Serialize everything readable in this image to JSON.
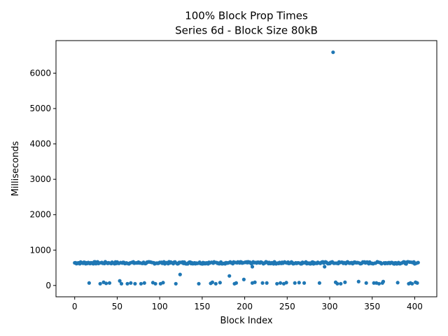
{
  "chart_data": {
    "type": "scatter",
    "title": "100% Block Prop Times",
    "subtitle": "Series 6d - Block Size 80kB",
    "xlabel": "Block Index",
    "ylabel": "Milliseconds",
    "xlim": [
      -22,
      426
    ],
    "ylim": [
      -320,
      6920
    ],
    "xticks": [
      0,
      50,
      100,
      150,
      200,
      250,
      300,
      350,
      400
    ],
    "yticks": [
      0,
      1000,
      2000,
      3000,
      4000,
      5000,
      6000
    ],
    "grid": false,
    "marker_color": "#1f77b4",
    "series": [
      {
        "baseline": {
          "x_range": [
            0,
            404
          ],
          "y": 640,
          "note_points_every_index": true
        },
        "outliers": [
          {
            "x": 304,
            "y": 6590
          },
          {
            "x": 124,
            "y": 310
          },
          {
            "x": 182,
            "y": 270
          },
          {
            "x": 199,
            "y": 170
          },
          {
            "x": 209,
            "y": 530
          },
          {
            "x": 294,
            "y": 530
          }
        ],
        "low_points": [
          {
            "x": 17,
            "y": 70
          },
          {
            "x": 30,
            "y": 50
          },
          {
            "x": 34,
            "y": 90
          },
          {
            "x": 37,
            "y": 60
          },
          {
            "x": 41,
            "y": 70
          },
          {
            "x": 53,
            "y": 130
          },
          {
            "x": 55,
            "y": 50
          },
          {
            "x": 62,
            "y": 50
          },
          {
            "x": 66,
            "y": 70
          },
          {
            "x": 71,
            "y": 50
          },
          {
            "x": 78,
            "y": 50
          },
          {
            "x": 82,
            "y": 70
          },
          {
            "x": 92,
            "y": 80
          },
          {
            "x": 95,
            "y": 50
          },
          {
            "x": 101,
            "y": 50
          },
          {
            "x": 104,
            "y": 80
          },
          {
            "x": 119,
            "y": 50
          },
          {
            "x": 146,
            "y": 50
          },
          {
            "x": 160,
            "y": 60
          },
          {
            "x": 162,
            "y": 90
          },
          {
            "x": 166,
            "y": 50
          },
          {
            "x": 171,
            "y": 80
          },
          {
            "x": 188,
            "y": 50
          },
          {
            "x": 190,
            "y": 70
          },
          {
            "x": 209,
            "y": 70
          },
          {
            "x": 212,
            "y": 90
          },
          {
            "x": 221,
            "y": 70
          },
          {
            "x": 226,
            "y": 70
          },
          {
            "x": 238,
            "y": 50
          },
          {
            "x": 242,
            "y": 70
          },
          {
            "x": 246,
            "y": 50
          },
          {
            "x": 249,
            "y": 80
          },
          {
            "x": 259,
            "y": 70
          },
          {
            "x": 264,
            "y": 80
          },
          {
            "x": 270,
            "y": 70
          },
          {
            "x": 288,
            "y": 70
          },
          {
            "x": 307,
            "y": 90
          },
          {
            "x": 309,
            "y": 50
          },
          {
            "x": 313,
            "y": 50
          },
          {
            "x": 318,
            "y": 90
          },
          {
            "x": 334,
            "y": 110
          },
          {
            "x": 343,
            "y": 70
          },
          {
            "x": 352,
            "y": 70
          },
          {
            "x": 355,
            "y": 70
          },
          {
            "x": 358,
            "y": 50
          },
          {
            "x": 362,
            "y": 70
          },
          {
            "x": 363,
            "y": 110
          },
          {
            "x": 380,
            "y": 80
          },
          {
            "x": 393,
            "y": 50
          },
          {
            "x": 395,
            "y": 70
          },
          {
            "x": 397,
            "y": 50
          },
          {
            "x": 401,
            "y": 90
          },
          {
            "x": 403,
            "y": 70
          }
        ]
      }
    ]
  }
}
